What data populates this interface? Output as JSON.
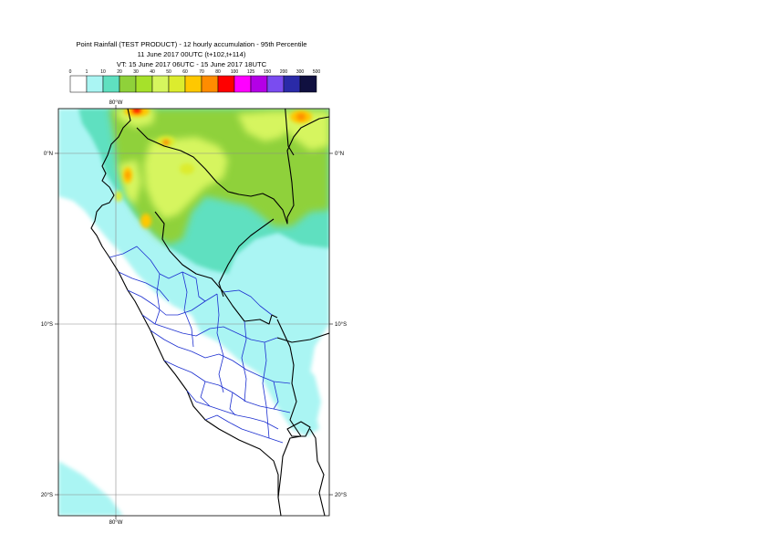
{
  "header": {
    "line1": "Point Rainfall (TEST PRODUCT) - 12 hourly accumulation - 95th Percentile",
    "line2": "11 June 2017 00UTC (t+102,t+114)",
    "line3": "VT: 15 June 2017 06UTC - 15 June 2017 18UTC"
  },
  "legend": {
    "thresholds": [
      "0",
      "1",
      "10",
      "20",
      "30",
      "40",
      "50",
      "60",
      "70",
      "80",
      "100",
      "125",
      "150",
      "200",
      "300",
      "500"
    ],
    "colors": [
      "#ffffff",
      "#aaf5f3",
      "#5fe0c0",
      "#8fd13a",
      "#a6e12a",
      "#d6f55e",
      "#dcec2e",
      "#ffc800",
      "#ff8c00",
      "#ff0000",
      "#ff00ff",
      "#b400e6",
      "#7a4cf0",
      "#2a2aa8",
      "#101040"
    ]
  },
  "axes": {
    "lat_labels": [
      "0°N",
      "10°S",
      "20°S"
    ],
    "lon_label": "80°W"
  }
}
